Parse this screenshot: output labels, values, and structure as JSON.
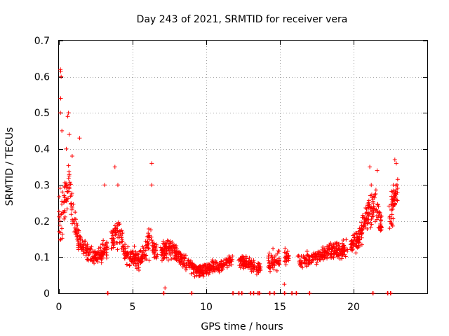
{
  "chart_data": {
    "type": "scatter",
    "title": "Day 243 of 2021, SRMTID for receiver vera",
    "xlabel": "GPS time / hours",
    "ylabel": "SRMTID / TECUs",
    "xlim": [
      0,
      25
    ],
    "ylim": [
      0,
      0.7
    ],
    "xticks": [
      0,
      5,
      10,
      15,
      20
    ],
    "xtick_labels": [
      "0",
      "5",
      "10",
      "15",
      "20"
    ],
    "yticks": [
      0,
      0.1,
      0.2,
      0.3,
      0.4,
      0.5,
      0.6,
      0.7
    ],
    "ytick_labels": [
      "0",
      "0.1",
      "0.2",
      "0.3",
      "0.4",
      "0.5",
      "0.6",
      "0.7"
    ],
    "grid": true,
    "marker": "+",
    "color": "#ff0000",
    "series": [
      {
        "name": "SRMTID",
        "profile": [
          {
            "x": 0.0,
            "y": 0.22,
            "spread": 0.18
          },
          {
            "x": 0.3,
            "y": 0.25,
            "spread": 0.12
          },
          {
            "x": 0.7,
            "y": 0.3,
            "spread": 0.1
          },
          {
            "x": 1.0,
            "y": 0.2,
            "spread": 0.08
          },
          {
            "x": 1.5,
            "y": 0.13,
            "spread": 0.05
          },
          {
            "x": 2.5,
            "y": 0.1,
            "spread": 0.04
          },
          {
            "x": 3.5,
            "y": 0.13,
            "spread": 0.05
          },
          {
            "x": 4.0,
            "y": 0.18,
            "spread": 0.08
          },
          {
            "x": 4.5,
            "y": 0.11,
            "spread": 0.05
          },
          {
            "x": 5.5,
            "y": 0.09,
            "spread": 0.04
          },
          {
            "x": 6.2,
            "y": 0.15,
            "spread": 0.08
          },
          {
            "x": 6.6,
            "y": 0.11,
            "spread": 0.05
          },
          {
            "x": 7.5,
            "y": 0.13,
            "spread": 0.05
          },
          {
            "x": 8.5,
            "y": 0.09,
            "spread": 0.04
          },
          {
            "x": 9.5,
            "y": 0.06,
            "spread": 0.03
          },
          {
            "x": 10.5,
            "y": 0.07,
            "spread": 0.03
          },
          {
            "x": 11.5,
            "y": 0.09,
            "spread": 0.03
          },
          {
            "x": 12.5,
            "y": 0.09,
            "spread": 0.03
          },
          {
            "x": 13.5,
            "y": 0.07,
            "spread": 0.03
          },
          {
            "x": 14.5,
            "y": 0.09,
            "spread": 0.05
          },
          {
            "x": 15.5,
            "y": 0.1,
            "spread": 0.03
          },
          {
            "x": 16.5,
            "y": 0.09,
            "spread": 0.03
          },
          {
            "x": 17.5,
            "y": 0.1,
            "spread": 0.03
          },
          {
            "x": 18.5,
            "y": 0.12,
            "spread": 0.04
          },
          {
            "x": 19.5,
            "y": 0.12,
            "spread": 0.04
          },
          {
            "x": 20.3,
            "y": 0.15,
            "spread": 0.05
          },
          {
            "x": 21.0,
            "y": 0.22,
            "spread": 0.08
          },
          {
            "x": 21.5,
            "y": 0.25,
            "spread": 0.1
          },
          {
            "x": 22.0,
            "y": 0.18,
            "spread": 0.06
          },
          {
            "x": 22.5,
            "y": 0.22,
            "spread": 0.08
          },
          {
            "x": 22.9,
            "y": 0.28,
            "spread": 0.08
          }
        ],
        "outliers": [
          {
            "x": 0.1,
            "y": 0.62
          },
          {
            "x": 0.12,
            "y": 0.615
          },
          {
            "x": 0.15,
            "y": 0.6
          },
          {
            "x": 0.12,
            "y": 0.54
          },
          {
            "x": 0.1,
            "y": 0.5
          },
          {
            "x": 0.2,
            "y": 0.45
          },
          {
            "x": 0.6,
            "y": 0.49
          },
          {
            "x": 0.65,
            "y": 0.5
          },
          {
            "x": 0.7,
            "y": 0.44
          },
          {
            "x": 0.5,
            "y": 0.4
          },
          {
            "x": 0.9,
            "y": 0.38
          },
          {
            "x": 1.4,
            "y": 0.43
          },
          {
            "x": 3.8,
            "y": 0.35
          },
          {
            "x": 4.0,
            "y": 0.3
          },
          {
            "x": 6.3,
            "y": 0.36
          },
          {
            "x": 6.3,
            "y": 0.3
          },
          {
            "x": 7.2,
            "y": 0.015
          },
          {
            "x": 15.3,
            "y": 0.025
          },
          {
            "x": 21.1,
            "y": 0.35
          },
          {
            "x": 21.2,
            "y": 0.3
          },
          {
            "x": 21.6,
            "y": 0.34
          },
          {
            "x": 22.8,
            "y": 0.37
          },
          {
            "x": 22.9,
            "y": 0.36
          },
          {
            "x": 3.1,
            "y": 0.3
          },
          {
            "x": 22.7,
            "y": 0.3
          }
        ],
        "ranges": [
          {
            "from": 0.0,
            "to": 3.3
          },
          {
            "from": 3.5,
            "to": 6.7
          },
          {
            "from": 6.9,
            "to": 11.8
          },
          {
            "from": 12.2,
            "to": 13.7
          },
          {
            "from": 14.2,
            "to": 15.0
          },
          {
            "from": 15.3,
            "to": 15.6
          },
          {
            "from": 16.2,
            "to": 19.6
          },
          {
            "from": 19.8,
            "to": 21.9
          },
          {
            "from": 22.4,
            "to": 23.0
          }
        ],
        "point_count": 1500,
        "baseline": {
          "y": 0,
          "x": [
            3.3,
            7.1,
            9.0,
            11.8,
            12.2,
            12.4,
            13.0,
            13.2,
            13.5,
            13.6,
            14.3,
            14.6,
            15.3,
            15.8,
            16.1,
            17.0,
            21.3,
            22.3,
            22.5
          ]
        }
      }
    ]
  }
}
